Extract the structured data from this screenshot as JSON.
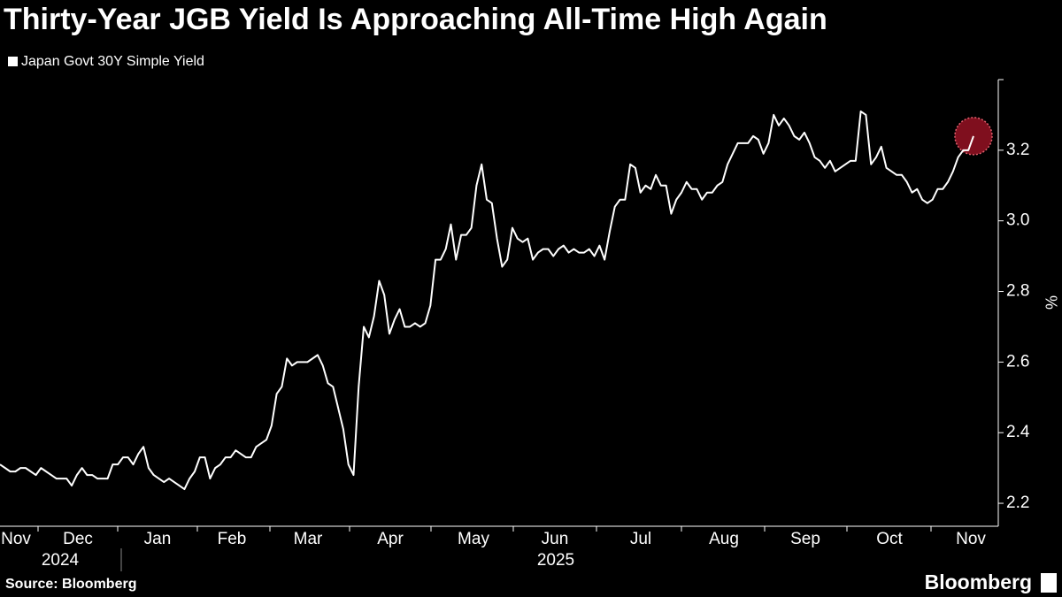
{
  "chart_data": {
    "type": "line",
    "title": "Thirty-Year JGB Yield Is Approaching All-Time High Again",
    "y_label": "%",
    "source": "Source: Bloomberg",
    "brand": "Bloomberg",
    "month_labels": [
      "Nov",
      "Dec",
      "Jan",
      "Feb",
      "Mar",
      "Apr",
      "May",
      "Jun",
      "Jul",
      "Aug",
      "Sep",
      "Oct",
      "Nov"
    ],
    "year_labels": [
      "2024",
      "2025"
    ],
    "ylim": [
      2.135,
      3.4
    ],
    "yticks": [
      2.2,
      2.4,
      2.6,
      2.8,
      {
        "value": 3,
        "label": "3.0"
      },
      3.2
    ],
    "series": [
      {
        "name": "Japan Govt 30Y Simple Yield",
        "color": "#ffffff",
        "values": [
          2.31,
          2.3,
          2.29,
          2.29,
          2.3,
          2.3,
          2.29,
          2.28,
          2.3,
          2.29,
          2.28,
          2.27,
          2.27,
          2.27,
          2.25,
          2.28,
          2.3,
          2.28,
          2.28,
          2.27,
          2.27,
          2.27,
          2.31,
          2.31,
          2.33,
          2.33,
          2.31,
          2.34,
          2.36,
          2.3,
          2.28,
          2.27,
          2.26,
          2.27,
          2.26,
          2.25,
          2.24,
          2.27,
          2.29,
          2.33,
          2.33,
          2.27,
          2.3,
          2.31,
          2.33,
          2.33,
          2.35,
          2.34,
          2.33,
          2.33,
          2.36,
          2.37,
          2.38,
          2.42,
          2.51,
          2.53,
          2.61,
          2.59,
          2.6,
          2.6,
          2.6,
          2.61,
          2.62,
          2.59,
          2.54,
          2.53,
          2.47,
          2.41,
          2.31,
          2.28,
          2.53,
          2.7,
          2.67,
          2.73,
          2.83,
          2.79,
          2.68,
          2.72,
          2.75,
          2.7,
          2.7,
          2.71,
          2.7,
          2.71,
          2.76,
          2.89,
          2.89,
          2.92,
          2.99,
          2.89,
          2.96,
          2.96,
          2.98,
          3.1,
          3.16,
          3.06,
          3.05,
          2.95,
          2.87,
          2.89,
          2.98,
          2.95,
          2.94,
          2.95,
          2.89,
          2.91,
          2.92,
          2.92,
          2.9,
          2.92,
          2.93,
          2.91,
          2.92,
          2.91,
          2.91,
          2.92,
          2.9,
          2.93,
          2.89,
          2.97,
          3.04,
          3.06,
          3.06,
          3.16,
          3.15,
          3.08,
          3.1,
          3.09,
          3.13,
          3.1,
          3.1,
          3.02,
          3.06,
          3.08,
          3.11,
          3.09,
          3.09,
          3.06,
          3.08,
          3.08,
          3.1,
          3.11,
          3.16,
          3.19,
          3.22,
          3.22,
          3.22,
          3.24,
          3.23,
          3.19,
          3.22,
          3.3,
          3.27,
          3.29,
          3.27,
          3.24,
          3.23,
          3.25,
          3.22,
          3.18,
          3.17,
          3.15,
          3.17,
          3.14,
          3.15,
          3.16,
          3.17,
          3.17,
          3.31,
          3.3,
          3.16,
          3.18,
          3.21,
          3.15,
          3.14,
          3.13,
          3.13,
          3.11,
          3.08,
          3.09,
          3.06,
          3.05,
          3.06,
          3.09,
          3.09,
          3.11,
          3.14,
          3.18,
          3.2,
          3.2,
          3.24
        ]
      }
    ]
  }
}
